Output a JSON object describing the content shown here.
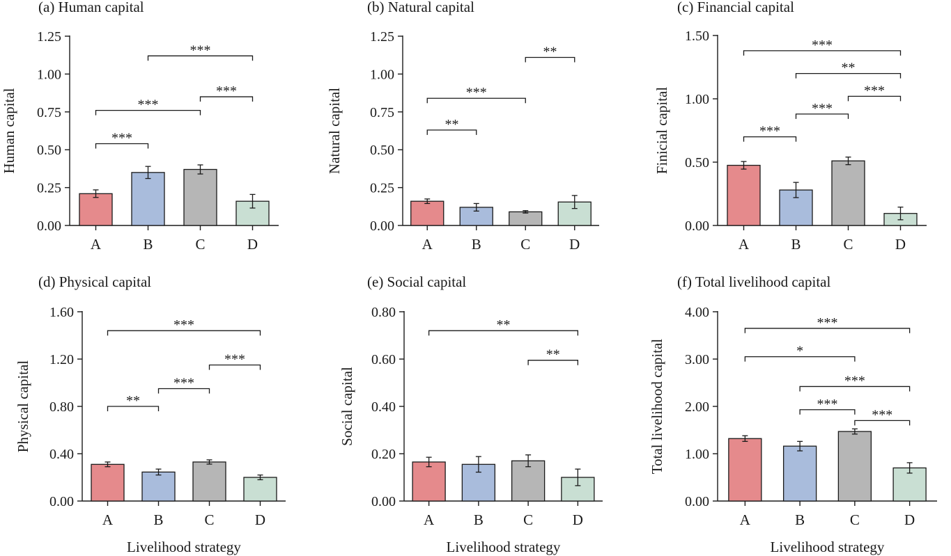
{
  "figure": {
    "xlabel": "Livelihood strategy",
    "categories": [
      "A",
      "B",
      "C",
      "D"
    ],
    "bar_colors": [
      "#e58a8c",
      "#a9bcdc",
      "#b6b6b6",
      "#c9dfd3"
    ],
    "bar_edge_color": "#1a1a1a"
  },
  "chart_data": [
    {
      "type": "bar",
      "title": "(a) Human capital",
      "ylabel": "Human capital",
      "xlabel": "",
      "categories": [
        "A",
        "B",
        "C",
        "D"
      ],
      "values": [
        0.21,
        0.35,
        0.37,
        0.16
      ],
      "errors": [
        0.025,
        0.04,
        0.03,
        0.045
      ],
      "ylim": [
        0,
        1.25
      ],
      "yticks": [
        0,
        0.25,
        0.5,
        0.75,
        1.0,
        1.25
      ],
      "yticklabels": [
        "0.00",
        "0.25",
        "0.50",
        "0.75",
        "1.00",
        "1.25"
      ],
      "significance": [
        {
          "from": "A",
          "to": "B",
          "y": 0.54,
          "label": "***"
        },
        {
          "from": "A",
          "to": "C",
          "y": 0.76,
          "label": "***"
        },
        {
          "from": "C",
          "to": "D",
          "y": 0.85,
          "label": "***"
        },
        {
          "from": "B",
          "to": "D",
          "y": 1.12,
          "label": "***"
        }
      ]
    },
    {
      "type": "bar",
      "title": "(b) Natural capital",
      "ylabel": "Natural capital",
      "xlabel": "",
      "categories": [
        "A",
        "B",
        "C",
        "D"
      ],
      "values": [
        0.16,
        0.12,
        0.09,
        0.155
      ],
      "errors": [
        0.015,
        0.025,
        0.008,
        0.043
      ],
      "ylim": [
        0,
        1.25
      ],
      "yticks": [
        0,
        0.25,
        0.5,
        0.75,
        1.0,
        1.25
      ],
      "yticklabels": [
        "0.00",
        "0.25",
        "0.50",
        "0.75",
        "1.00",
        "1.25"
      ],
      "significance": [
        {
          "from": "A",
          "to": "B",
          "y": 0.63,
          "label": "**"
        },
        {
          "from": "A",
          "to": "C",
          "y": 0.84,
          "label": "***"
        },
        {
          "from": "C",
          "to": "D",
          "y": 1.11,
          "label": "**"
        }
      ]
    },
    {
      "type": "bar",
      "title": "(c) Financial capital",
      "ylabel": "Finicial capital",
      "xlabel": "",
      "categories": [
        "A",
        "B",
        "C",
        "D"
      ],
      "values": [
        0.475,
        0.28,
        0.51,
        0.095
      ],
      "errors": [
        0.03,
        0.06,
        0.03,
        0.05
      ],
      "ylim": [
        0,
        1.5
      ],
      "yticks": [
        0,
        0.5,
        1.0,
        1.5
      ],
      "yticklabels": [
        "0.00",
        "0.50",
        "1.00",
        "1.50"
      ],
      "significance": [
        {
          "from": "A",
          "to": "B",
          "y": 0.7,
          "label": "***"
        },
        {
          "from": "B",
          "to": "C",
          "y": 0.88,
          "label": "***"
        },
        {
          "from": "C",
          "to": "D",
          "y": 1.02,
          "label": "***"
        },
        {
          "from": "B",
          "to": "D",
          "y": 1.2,
          "label": "**"
        },
        {
          "from": "A",
          "to": "D",
          "y": 1.38,
          "label": "***"
        }
      ]
    },
    {
      "type": "bar",
      "title": "(d) Physical capital",
      "ylabel": "Physical capital",
      "xlabel": "Livelihood strategy",
      "categories": [
        "A",
        "B",
        "C",
        "D"
      ],
      "values": [
        0.31,
        0.245,
        0.33,
        0.2
      ],
      "errors": [
        0.02,
        0.025,
        0.018,
        0.02
      ],
      "ylim": [
        0,
        1.6
      ],
      "yticks": [
        0,
        0.4,
        0.8,
        1.2,
        1.6
      ],
      "yticklabels": [
        "0.00",
        "0.40",
        "0.80",
        "1.20",
        "1.60"
      ],
      "significance": [
        {
          "from": "A",
          "to": "B",
          "y": 0.8,
          "label": "**"
        },
        {
          "from": "B",
          "to": "C",
          "y": 0.95,
          "label": "***"
        },
        {
          "from": "C",
          "to": "D",
          "y": 1.15,
          "label": "***"
        },
        {
          "from": "A",
          "to": "D",
          "y": 1.44,
          "label": "***"
        }
      ]
    },
    {
      "type": "bar",
      "title": "(e) Social capital",
      "ylabel": "Social capital",
      "xlabel": "Livelihood strategy",
      "categories": [
        "A",
        "B",
        "C",
        "D"
      ],
      "values": [
        0.165,
        0.155,
        0.17,
        0.1
      ],
      "errors": [
        0.02,
        0.033,
        0.025,
        0.035
      ],
      "ylim": [
        0,
        0.8
      ],
      "yticks": [
        0,
        0.2,
        0.4,
        0.6,
        0.8
      ],
      "yticklabels": [
        "0.00",
        "0.20",
        "0.40",
        "0.60",
        "0.80"
      ],
      "significance": [
        {
          "from": "C",
          "to": "D",
          "y": 0.595,
          "label": "**"
        },
        {
          "from": "A",
          "to": "D",
          "y": 0.72,
          "label": "**"
        }
      ]
    },
    {
      "type": "bar",
      "title": "(f) Total livelihood capital",
      "ylabel": "Total livelihood capital",
      "xlabel": "Livelihood strategy",
      "categories": [
        "A",
        "B",
        "C",
        "D"
      ],
      "values": [
        1.32,
        1.16,
        1.47,
        0.7
      ],
      "errors": [
        0.06,
        0.1,
        0.055,
        0.11
      ],
      "ylim": [
        0,
        4.0
      ],
      "yticks": [
        0,
        1,
        2,
        3,
        4
      ],
      "yticklabels": [
        "0.00",
        "1.00",
        "2.00",
        "3.00",
        "4.00"
      ],
      "significance": [
        {
          "from": "B",
          "to": "C",
          "y": 1.93,
          "label": "***"
        },
        {
          "from": "C",
          "to": "D",
          "y": 1.7,
          "label": "***"
        },
        {
          "from": "B",
          "to": "D",
          "y": 2.42,
          "label": "***"
        },
        {
          "from": "A",
          "to": "C",
          "y": 3.05,
          "label": "*"
        },
        {
          "from": "A",
          "to": "D",
          "y": 3.65,
          "label": "***"
        }
      ]
    }
  ]
}
